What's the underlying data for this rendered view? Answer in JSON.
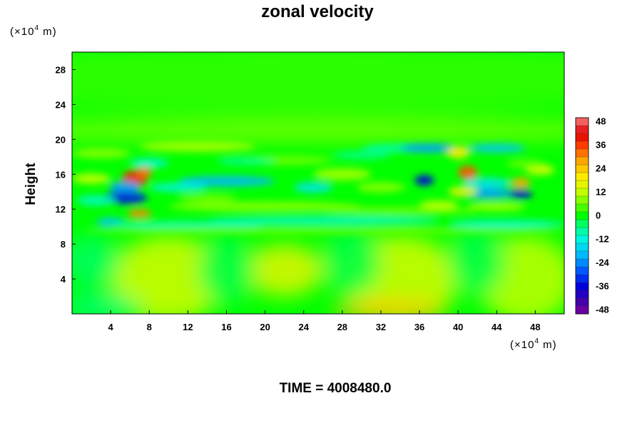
{
  "chart_data": {
    "type": "heatmap",
    "title": "zonal velocity",
    "ylabel": "Height",
    "x_unit": "(×10",
    "y_unit": "(×10",
    "unit_exponent": "4",
    "unit_suffix": " m)",
    "xlim": [
      0,
      51
    ],
    "ylim": [
      0,
      30
    ],
    "x_ticks": [
      4,
      8,
      12,
      16,
      20,
      24,
      28,
      32,
      36,
      40,
      44,
      48
    ],
    "y_ticks": [
      4,
      8,
      12,
      16,
      20,
      24,
      28
    ],
    "colorbar": {
      "vmin": -50,
      "vmax": 50,
      "step": 4,
      "tick_values": [
        48,
        36,
        24,
        12,
        0,
        -12,
        -24,
        -36,
        -48
      ],
      "tick_labels": [
        "48",
        "36",
        "24",
        "12",
        "0",
        "-12",
        "-24",
        "-36",
        "-48"
      ]
    },
    "footer": "TIME = 4008480.0"
  },
  "colors": {
    "background": "#ffffff",
    "zero_green": "#00ff00"
  }
}
